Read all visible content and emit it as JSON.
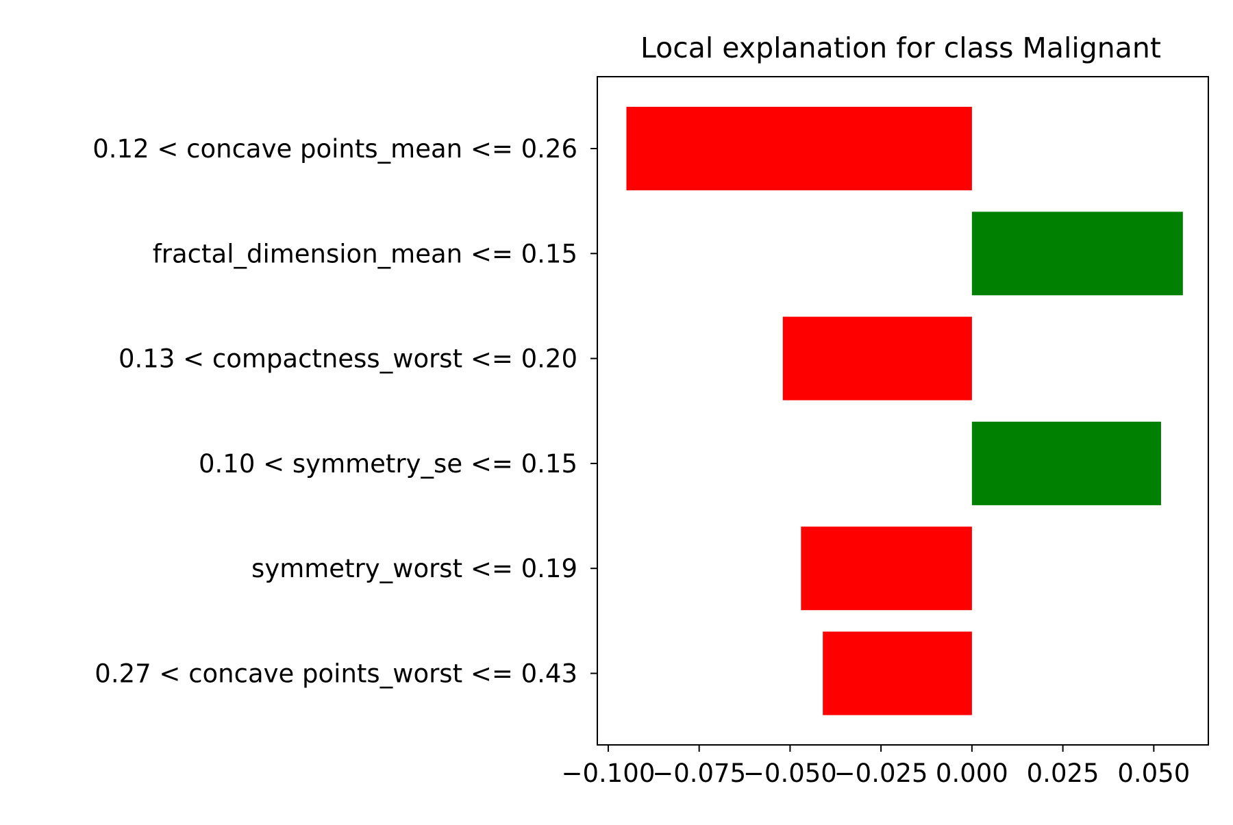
{
  "chart_data": {
    "type": "bar",
    "orientation": "horizontal",
    "title": "Local explanation for class Malignant",
    "xlabel": "",
    "ylabel": "",
    "categories": [
      "0.12 < concave points_mean <= 0.26",
      "fractal_dimension_mean <= 0.15",
      "0.13 < compactness_worst <= 0.20",
      "0.10 < symmetry_se <= 0.15",
      "symmetry_worst <= 0.19",
      "0.27 < concave points_worst <= 0.43"
    ],
    "values": [
      -0.095,
      0.058,
      -0.052,
      0.052,
      -0.047,
      -0.041
    ],
    "xlim": [
      -0.103,
      0.065
    ],
    "xticks": [
      -0.1,
      -0.075,
      -0.05,
      -0.025,
      0.0,
      0.025,
      0.05
    ],
    "xtick_labels": [
      "−0.100",
      "−0.075",
      "−0.050",
      "−0.025",
      "0.000",
      "0.025",
      "0.050"
    ],
    "grid": false,
    "colors": {
      "positive": "#008000",
      "negative": "#ff0000"
    }
  }
}
